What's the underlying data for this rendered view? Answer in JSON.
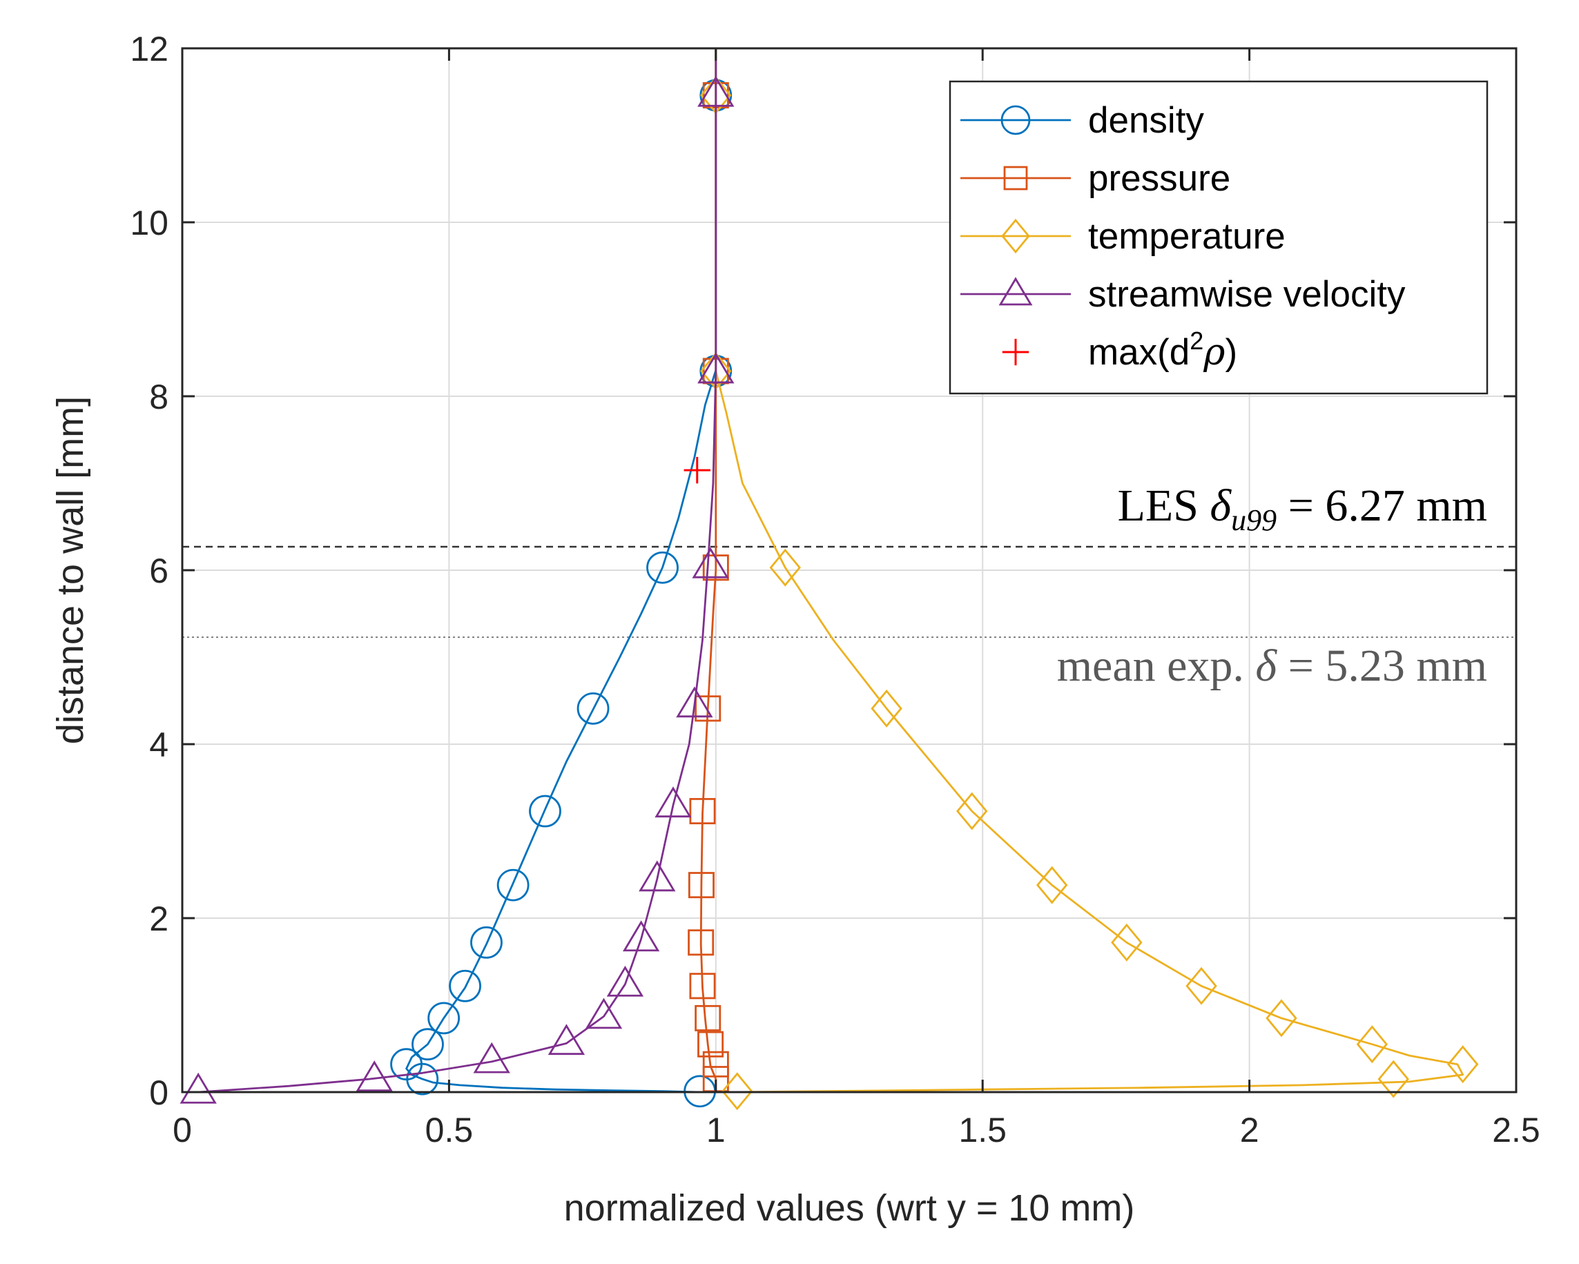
{
  "chart_data": {
    "type": "line",
    "xlabel": "normalized values (wrt y = 10 mm)",
    "ylabel": "distance to wall [mm]",
    "xlim": [
      0,
      2.5
    ],
    "ylim": [
      0,
      12
    ],
    "xticks": [
      0,
      0.5,
      1,
      1.5,
      2,
      2.5
    ],
    "xtick_labels": [
      "0",
      "0.5",
      "1",
      "1.5",
      "2",
      "2.5"
    ],
    "yticks": [
      0,
      2,
      4,
      6,
      8,
      10,
      12
    ],
    "ytick_labels": [
      "0",
      "2",
      "4",
      "6",
      "8",
      "10",
      "12"
    ],
    "grid": true,
    "legend_position": "top-right",
    "series": [
      {
        "name": "density",
        "marker": "circle",
        "color": "#0072BD",
        "curve": [
          [
            0.97,
            0
          ],
          [
            0.9,
            0.01
          ],
          [
            0.8,
            0.02
          ],
          [
            0.7,
            0.03
          ],
          [
            0.6,
            0.05
          ],
          [
            0.52,
            0.08
          ],
          [
            0.47,
            0.11
          ],
          [
            0.45,
            0.15
          ],
          [
            0.43,
            0.2
          ],
          [
            0.42,
            0.27
          ],
          [
            0.43,
            0.4
          ],
          [
            0.46,
            0.55
          ],
          [
            0.49,
            0.85
          ],
          [
            0.53,
            1.2
          ],
          [
            0.57,
            1.7
          ],
          [
            0.62,
            2.4
          ],
          [
            0.68,
            3.25
          ],
          [
            0.72,
            3.8
          ],
          [
            0.77,
            4.4
          ],
          [
            0.82,
            5.0
          ],
          [
            0.86,
            5.5
          ],
          [
            0.9,
            6.03
          ],
          [
            0.93,
            6.6
          ],
          [
            0.96,
            7.3
          ],
          [
            0.98,
            7.9
          ],
          [
            1.0,
            8.3
          ],
          [
            1.0,
            9.5
          ],
          [
            1.0,
            12
          ]
        ],
        "markers": [
          [
            0.97,
            0.01
          ],
          [
            0.45,
            0.15
          ],
          [
            0.42,
            0.32
          ],
          [
            0.46,
            0.55
          ],
          [
            0.49,
            0.85
          ],
          [
            0.53,
            1.22
          ],
          [
            0.57,
            1.72
          ],
          [
            0.62,
            2.38
          ],
          [
            0.68,
            3.23
          ],
          [
            0.77,
            4.41
          ],
          [
            0.9,
            6.03
          ],
          [
            1.0,
            8.29
          ],
          [
            1.0,
            11.46
          ]
        ]
      },
      {
        "name": "pressure",
        "marker": "square",
        "color": "#D95319",
        "curve": [
          [
            1.0,
            0
          ],
          [
            1.0,
            0.15
          ],
          [
            0.99,
            0.3
          ],
          [
            0.985,
            0.55
          ],
          [
            0.98,
            0.85
          ],
          [
            0.975,
            1.2
          ],
          [
            0.972,
            1.7
          ],
          [
            0.973,
            2.4
          ],
          [
            0.975,
            3.2
          ],
          [
            0.985,
            4.4
          ],
          [
            0.995,
            5.5
          ],
          [
            1.0,
            6.0
          ],
          [
            1.0,
            7.0
          ],
          [
            1.0,
            8.3
          ],
          [
            1.0,
            12
          ]
        ],
        "markers": [
          [
            1.0,
            0.15
          ],
          [
            1.0,
            0.32
          ],
          [
            0.99,
            0.55
          ],
          [
            0.985,
            0.85
          ],
          [
            0.975,
            1.22
          ],
          [
            0.972,
            1.72
          ],
          [
            0.973,
            2.38
          ],
          [
            0.975,
            3.23
          ],
          [
            0.985,
            4.41
          ],
          [
            1.0,
            6.03
          ],
          [
            1.0,
            8.29
          ],
          [
            1.0,
            11.46
          ]
        ]
      },
      {
        "name": "temperature",
        "marker": "diamond",
        "color": "#EDB120",
        "curve": [
          [
            1.03,
            0
          ],
          [
            1.2,
            0.01
          ],
          [
            1.5,
            0.03
          ],
          [
            1.8,
            0.05
          ],
          [
            2.1,
            0.08
          ],
          [
            2.3,
            0.12
          ],
          [
            2.4,
            0.2
          ],
          [
            2.39,
            0.32
          ],
          [
            2.3,
            0.42
          ],
          [
            2.23,
            0.55
          ],
          [
            2.06,
            0.85
          ],
          [
            1.91,
            1.22
          ],
          [
            1.77,
            1.72
          ],
          [
            1.63,
            2.38
          ],
          [
            1.48,
            3.23
          ],
          [
            1.32,
            4.41
          ],
          [
            1.22,
            5.2
          ],
          [
            1.13,
            6.03
          ],
          [
            1.05,
            7.0
          ],
          [
            1.02,
            7.8
          ],
          [
            1.0,
            8.29
          ],
          [
            1.0,
            9.5
          ],
          [
            1.0,
            12
          ]
        ],
        "markers": [
          [
            1.04,
            0.01
          ],
          [
            2.27,
            0.15
          ],
          [
            2.4,
            0.32
          ],
          [
            2.23,
            0.55
          ],
          [
            2.06,
            0.85
          ],
          [
            1.91,
            1.22
          ],
          [
            1.77,
            1.72
          ],
          [
            1.63,
            2.38
          ],
          [
            1.48,
            3.23
          ],
          [
            1.32,
            4.41
          ],
          [
            1.13,
            6.03
          ],
          [
            1.0,
            8.29
          ],
          [
            1.0,
            11.46
          ]
        ]
      },
      {
        "name": "streamwise velocity",
        "marker": "triangle",
        "color": "#7E2F8E",
        "curve": [
          [
            0.03,
            0
          ],
          [
            0.2,
            0.07
          ],
          [
            0.35,
            0.15
          ],
          [
            0.45,
            0.22
          ],
          [
            0.58,
            0.35
          ],
          [
            0.68,
            0.5
          ],
          [
            0.72,
            0.56
          ],
          [
            0.79,
            0.87
          ],
          [
            0.83,
            1.24
          ],
          [
            0.86,
            1.76
          ],
          [
            0.89,
            2.45
          ],
          [
            0.92,
            3.3
          ],
          [
            0.95,
            4.0
          ],
          [
            0.96,
            4.45
          ],
          [
            0.975,
            5.2
          ],
          [
            0.985,
            6.05
          ],
          [
            0.995,
            7.0
          ],
          [
            1.0,
            8.3
          ],
          [
            1.0,
            12
          ]
        ],
        "markers": [
          [
            0.03,
            0.01
          ],
          [
            0.36,
            0.15
          ],
          [
            0.58,
            0.36
          ],
          [
            0.72,
            0.57
          ],
          [
            0.79,
            0.87
          ],
          [
            0.83,
            1.24
          ],
          [
            0.86,
            1.76
          ],
          [
            0.89,
            2.45
          ],
          [
            0.92,
            3.3
          ],
          [
            0.96,
            4.45
          ],
          [
            0.99,
            6.05
          ],
          [
            1.0,
            8.29
          ],
          [
            1.0,
            11.47
          ]
        ]
      },
      {
        "name": "max(d²ρ)",
        "marker": "plus",
        "color": "#FF0000",
        "curve": [],
        "markers": [
          [
            0.965,
            7.15
          ]
        ]
      }
    ],
    "reference_lines": [
      {
        "y": 6.27,
        "style": "dashed",
        "label_prefix": "LES ",
        "label_symbol": "δ",
        "label_subscript": "u99",
        "label_value": " = 6.27 mm",
        "color": "#000000"
      },
      {
        "y": 5.23,
        "style": "dotted",
        "label_prefix": "mean exp. ",
        "label_symbol": "δ",
        "label_subscript": "",
        "label_value": " = 5.23 mm",
        "color": "#595959"
      }
    ],
    "legend": [
      {
        "text": "density"
      },
      {
        "text": "pressure"
      },
      {
        "text": "temperature"
      },
      {
        "text": "streamwise velocity"
      },
      {
        "text_main": "max(d",
        "text_sup": "2",
        "text_greek": "ρ",
        "text_end": ")"
      }
    ]
  }
}
